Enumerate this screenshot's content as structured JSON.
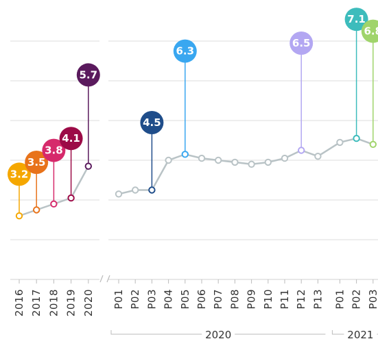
{
  "chart_data": [
    {
      "type": "line",
      "categories": [
        "2016",
        "2017",
        "2018",
        "2019",
        "2020"
      ],
      "values": [
        3.2,
        3.5,
        3.8,
        4.1,
        5.7
      ],
      "highlight_colors": [
        "#f5a700",
        "#e8731a",
        "#d62a6b",
        "#9c0b47",
        "#5a1a5d"
      ],
      "line_color": "#b9c3c6",
      "ylim": [
        0,
        14
      ],
      "yticks": [
        0,
        2,
        4,
        6,
        8,
        10,
        12
      ],
      "grid": true
    },
    {
      "type": "line",
      "groups": [
        {
          "label": "2020",
          "categories": [
            "P01",
            "P02",
            "P03",
            "P04",
            "P05",
            "P06",
            "P07",
            "P08",
            "P09",
            "P10",
            "P11",
            "P12",
            "P13"
          ]
        },
        {
          "label": "2021",
          "categories": [
            "P01",
            "P02",
            "P03"
          ]
        }
      ],
      "values": [
        4.3,
        4.5,
        4.5,
        6.0,
        6.3,
        6.1,
        6.0,
        5.9,
        5.8,
        5.9,
        6.1,
        6.5,
        6.2,
        6.9,
        7.1,
        6.8
      ],
      "highlight_colors": [
        null,
        null,
        "#1f4d8a",
        null,
        "#39a7f0",
        null,
        null,
        null,
        null,
        null,
        null,
        "#b3a7f2",
        null,
        null,
        "#3dbcbc",
        "#a0d46b"
      ],
      "line_color": "#b9c3c6",
      "ylim": [
        0,
        14
      ],
      "yticks": [
        0,
        2,
        4,
        6,
        8,
        10,
        12
      ],
      "grid": true
    }
  ]
}
